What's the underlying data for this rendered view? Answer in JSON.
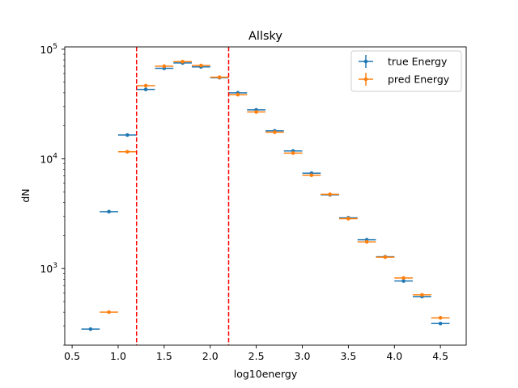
{
  "chart_data": {
    "type": "scatter",
    "title": "Allsky",
    "xlabel": "log10energy",
    "ylabel": "dN",
    "xlim": [
      0.42,
      4.78
    ],
    "ylim": [
      200,
      105000
    ],
    "yscale": "log",
    "xticks": [
      0.5,
      1.0,
      1.5,
      2.0,
      2.5,
      3.0,
      3.5,
      4.0,
      4.5
    ],
    "xtick_labels": [
      "0.5",
      "1.0",
      "1.5",
      "2.0",
      "2.5",
      "3.0",
      "3.5",
      "4.0",
      "4.5"
    ],
    "yticks": [
      1000,
      10000,
      100000
    ],
    "ytick_labels": [
      {
        "base": "10",
        "exp": "3"
      },
      {
        "base": "10",
        "exp": "4"
      },
      {
        "base": "10",
        "exp": "5"
      }
    ],
    "bin_halfwidth": 0.1,
    "cut_lines": [
      1.2,
      2.2
    ],
    "cut_line_color": "#ff0000",
    "legend": {
      "position": "top-right"
    },
    "series": [
      {
        "name": "true Energy",
        "color": "#1f77b4",
        "x": [
          0.7,
          0.9,
          1.1,
          1.3,
          1.5,
          1.7,
          1.9,
          2.1,
          2.3,
          2.5,
          2.7,
          2.9,
          3.1,
          3.3,
          3.5,
          3.7,
          3.9,
          4.1,
          4.3,
          4.5
        ],
        "y": [
          280,
          3300,
          16500,
          43000,
          67000,
          75000,
          69000,
          55000,
          40000,
          28000,
          18000,
          11800,
          7400,
          4700,
          2900,
          1830,
          1280,
          770,
          555,
          315
        ]
      },
      {
        "name": "pred Energy",
        "color": "#ff7f0e",
        "x": [
          0.7,
          0.9,
          1.1,
          1.3,
          1.5,
          1.7,
          1.9,
          2.1,
          2.3,
          2.5,
          2.7,
          2.9,
          3.1,
          3.3,
          3.5,
          3.7,
          3.9,
          4.1,
          4.3,
          4.5
        ],
        "y": [
          null,
          400,
          11600,
          46500,
          70000,
          77000,
          71000,
          55500,
          38500,
          26800,
          17500,
          11300,
          7100,
          4750,
          2850,
          1750,
          1270,
          820,
          575,
          355
        ]
      }
    ]
  }
}
